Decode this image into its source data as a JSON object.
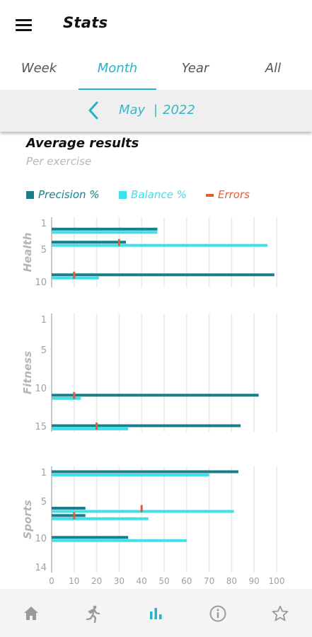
{
  "header": {
    "title": "Stats",
    "menu_icon": "hamburger-menu-icon"
  },
  "tabs": [
    {
      "label": "Week",
      "active": false
    },
    {
      "label": "Month",
      "active": true
    },
    {
      "label": "Year",
      "active": false
    },
    {
      "label": "All",
      "active": false
    }
  ],
  "date_nav": {
    "prev_icon": "chevron-left-icon",
    "month": "May",
    "separator": "|",
    "year": "2022"
  },
  "section": {
    "title": "Average results",
    "subtitle": "Per exercise"
  },
  "legend": [
    {
      "label": "Precision %",
      "color": "#167f8c"
    },
    {
      "label": "Balance %",
      "color": "#3ee0ec"
    },
    {
      "label": "Errors",
      "color": "#ec5a2c"
    }
  ],
  "colors": {
    "accent": "#26b3c4",
    "precision": "#167f8c",
    "balance": "#3ee0ec",
    "errors": "#ec5a2c"
  },
  "chart_data": [
    {
      "type": "bar",
      "orientation": "horizontal",
      "group": "Health",
      "xlim": [
        0,
        100
      ],
      "y_ticks": [
        1,
        5,
        10
      ],
      "ylim": [
        1,
        10
      ],
      "rows": [
        {
          "y": 2,
          "precision": 47,
          "balance": 47,
          "errors": null
        },
        {
          "y": 4,
          "precision": 33,
          "balance": 96,
          "errors": 30
        },
        {
          "y": 9,
          "precision": 99,
          "balance": 21,
          "errors": 10
        }
      ]
    },
    {
      "type": "bar",
      "orientation": "horizontal",
      "group": "Fitness",
      "xlim": [
        0,
        100
      ],
      "y_ticks": [
        1,
        5,
        10,
        15
      ],
      "ylim": [
        1,
        15
      ],
      "rows": [
        {
          "y": 11,
          "precision": 92,
          "balance": 13,
          "errors": 10
        },
        {
          "y": 15,
          "precision": 84,
          "balance": 34,
          "errors": 20
        }
      ]
    },
    {
      "type": "bar",
      "orientation": "horizontal",
      "group": "Sports",
      "xlim": [
        0,
        100
      ],
      "x_ticks": [
        0,
        10,
        20,
        30,
        40,
        50,
        60,
        70,
        80,
        90,
        100
      ],
      "y_ticks": [
        1,
        5,
        10,
        14
      ],
      "ylim": [
        1,
        14
      ],
      "rows": [
        {
          "y": 1,
          "precision": 83,
          "balance": 70,
          "errors": null
        },
        {
          "y": 6,
          "precision": 15,
          "balance": 81,
          "errors": 40
        },
        {
          "y": 7,
          "precision": 15,
          "balance": 43,
          "errors": 10
        },
        {
          "y": 10,
          "precision": 34,
          "balance": 60,
          "errors": null
        }
      ]
    }
  ],
  "bottom_nav": [
    {
      "icon": "home-icon",
      "active": false
    },
    {
      "icon": "running-person-icon",
      "active": false
    },
    {
      "icon": "bar-chart-icon",
      "active": true
    },
    {
      "icon": "info-icon",
      "active": false
    },
    {
      "icon": "star-icon",
      "active": false
    }
  ]
}
